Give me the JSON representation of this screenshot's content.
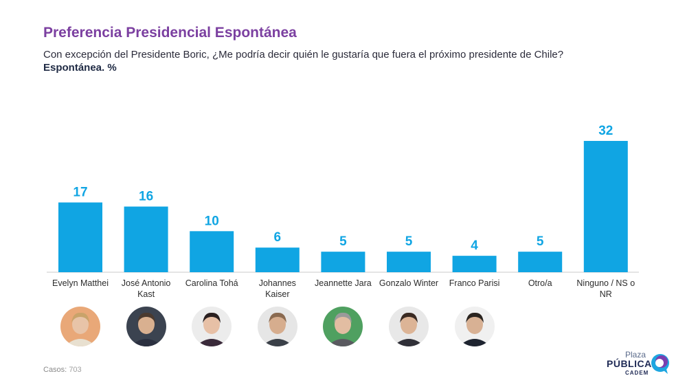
{
  "header": {
    "title": "Preferencia Presidencial Espontánea",
    "question": "Con excepción del Presidente Boric, ¿Me podría decir quién le gustaría que fuera el próximo presidente de Chile?",
    "subtitle": "Espontánea. %"
  },
  "footer": {
    "casos_label": "Casos:",
    "casos_value": "703"
  },
  "logo": {
    "line1": "Plaza",
    "line2": "PÚBLICA",
    "line3": "CADEM"
  },
  "colors": {
    "bar": "#10a5e3",
    "label": "#10a5e3",
    "title": "#7b3fa0"
  },
  "chart_data": {
    "type": "bar",
    "categories": [
      "Evelyn Matthei",
      "José Antonio Kast",
      "Carolina Tohá",
      "Johannes Kaiser",
      "Jeannette Jara",
      "Gonzalo Winter",
      "Franco Parisi",
      "Otro/a",
      "Ninguno / NS o NR"
    ],
    "category_lines": [
      [
        "Evelyn Matthei"
      ],
      [
        "José Antonio",
        "Kast"
      ],
      [
        "Carolina Tohá"
      ],
      [
        "Johannes",
        "Kaiser"
      ],
      [
        "Jeannette Jara"
      ],
      [
        "Gonzalo Winter"
      ],
      [
        "Franco Parisi"
      ],
      [
        "Otro/a"
      ],
      [
        "Ninguno / NS o",
        "NR"
      ]
    ],
    "values": [
      17,
      16,
      10,
      6,
      5,
      5,
      4,
      5,
      32
    ],
    "ylim": [
      0,
      32
    ],
    "grid": false,
    "photos": [
      true,
      true,
      true,
      true,
      true,
      true,
      true,
      false,
      false
    ]
  }
}
